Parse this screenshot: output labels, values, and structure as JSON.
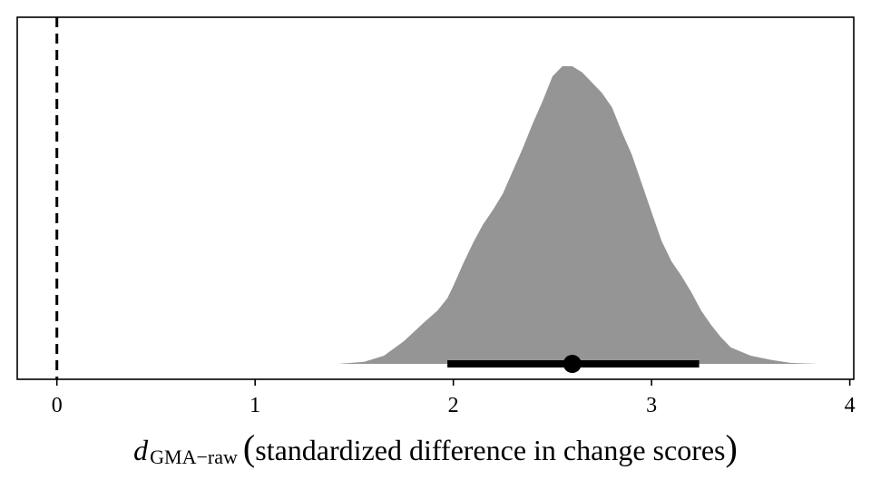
{
  "chart_data": {
    "type": "area",
    "xlim": [
      -0.2,
      4.02
    ],
    "x_ticks": [
      "0",
      "1",
      "2",
      "3",
      "4"
    ],
    "x_tick_values": [
      0,
      1,
      2,
      3,
      4
    ],
    "reference_line_x": 0,
    "xlabel": {
      "symbol": "d",
      "subscript": "GMA−raw",
      "open_paren": "(",
      "text": "standardized difference in change scores",
      "close_paren": ")"
    },
    "density": {
      "x": [
        1.42,
        1.55,
        1.65,
        1.75,
        1.85,
        1.92,
        1.97,
        2.0,
        2.05,
        2.1,
        2.15,
        2.2,
        2.25,
        2.3,
        2.35,
        2.4,
        2.45,
        2.5,
        2.55,
        2.6,
        2.65,
        2.7,
        2.75,
        2.8,
        2.85,
        2.9,
        2.95,
        3.0,
        3.05,
        3.1,
        3.15,
        3.2,
        3.25,
        3.3,
        3.35,
        3.4,
        3.5,
        3.6,
        3.7,
        3.84
      ],
      "y": [
        0.0,
        0.01,
        0.04,
        0.11,
        0.2,
        0.26,
        0.32,
        0.38,
        0.49,
        0.59,
        0.68,
        0.75,
        0.83,
        0.94,
        1.05,
        1.17,
        1.28,
        1.4,
        1.45,
        1.45,
        1.42,
        1.37,
        1.32,
        1.25,
        1.13,
        1.02,
        0.88,
        0.74,
        0.6,
        0.5,
        0.43,
        0.35,
        0.26,
        0.19,
        0.13,
        0.08,
        0.04,
        0.02,
        0.005,
        0.0
      ],
      "ymax": 1.6,
      "fill_color": "#959595"
    },
    "point_estimate": 2.6,
    "interval": [
      1.97,
      3.24
    ],
    "interval_color": "#000000"
  }
}
